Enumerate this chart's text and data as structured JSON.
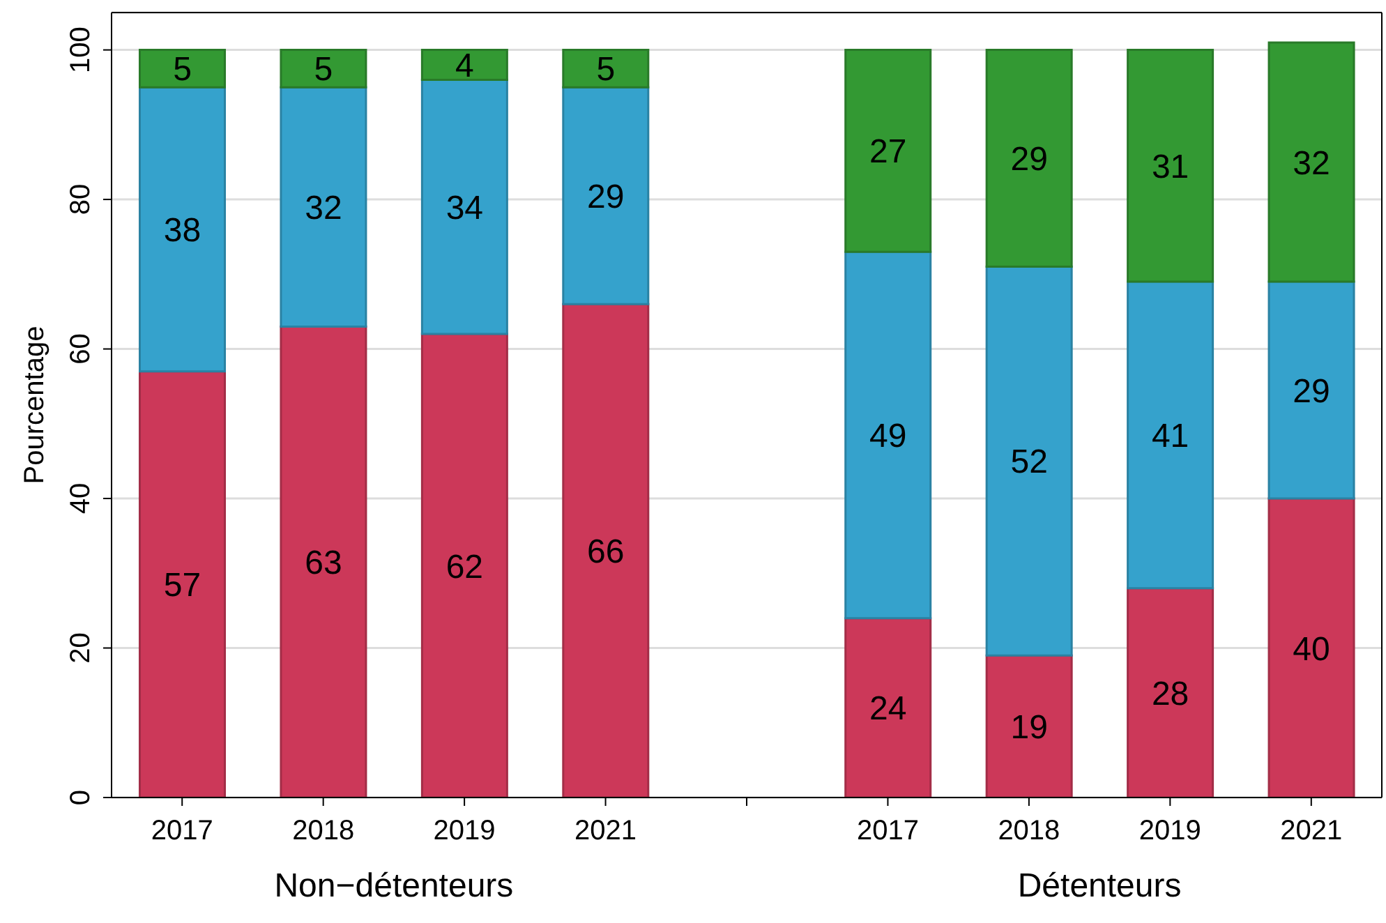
{
  "chart_data": {
    "type": "bar",
    "stacked": true,
    "ylabel": "Pourcentage",
    "categories": [
      "2017",
      "2018",
      "2019",
      "2021",
      null,
      "2017",
      "2018",
      "2019",
      "2021"
    ],
    "series": [
      {
        "color": "#cc3859",
        "values": [
          57,
          63,
          62,
          66,
          null,
          24,
          19,
          28,
          40
        ]
      },
      {
        "color": "#35a2cc",
        "values": [
          38,
          32,
          34,
          29,
          null,
          49,
          52,
          41,
          29
        ]
      },
      {
        "color": "#339933",
        "values": [
          5,
          5,
          4,
          5,
          null,
          27,
          29,
          31,
          32
        ]
      }
    ],
    "ylim": [
      0,
      105
    ],
    "yticks": [
      0,
      20,
      40,
      60,
      80,
      100
    ],
    "grid": "y",
    "data_labels": true,
    "annotations": [
      "Non−détenteurs",
      "Détenteurs"
    ]
  }
}
